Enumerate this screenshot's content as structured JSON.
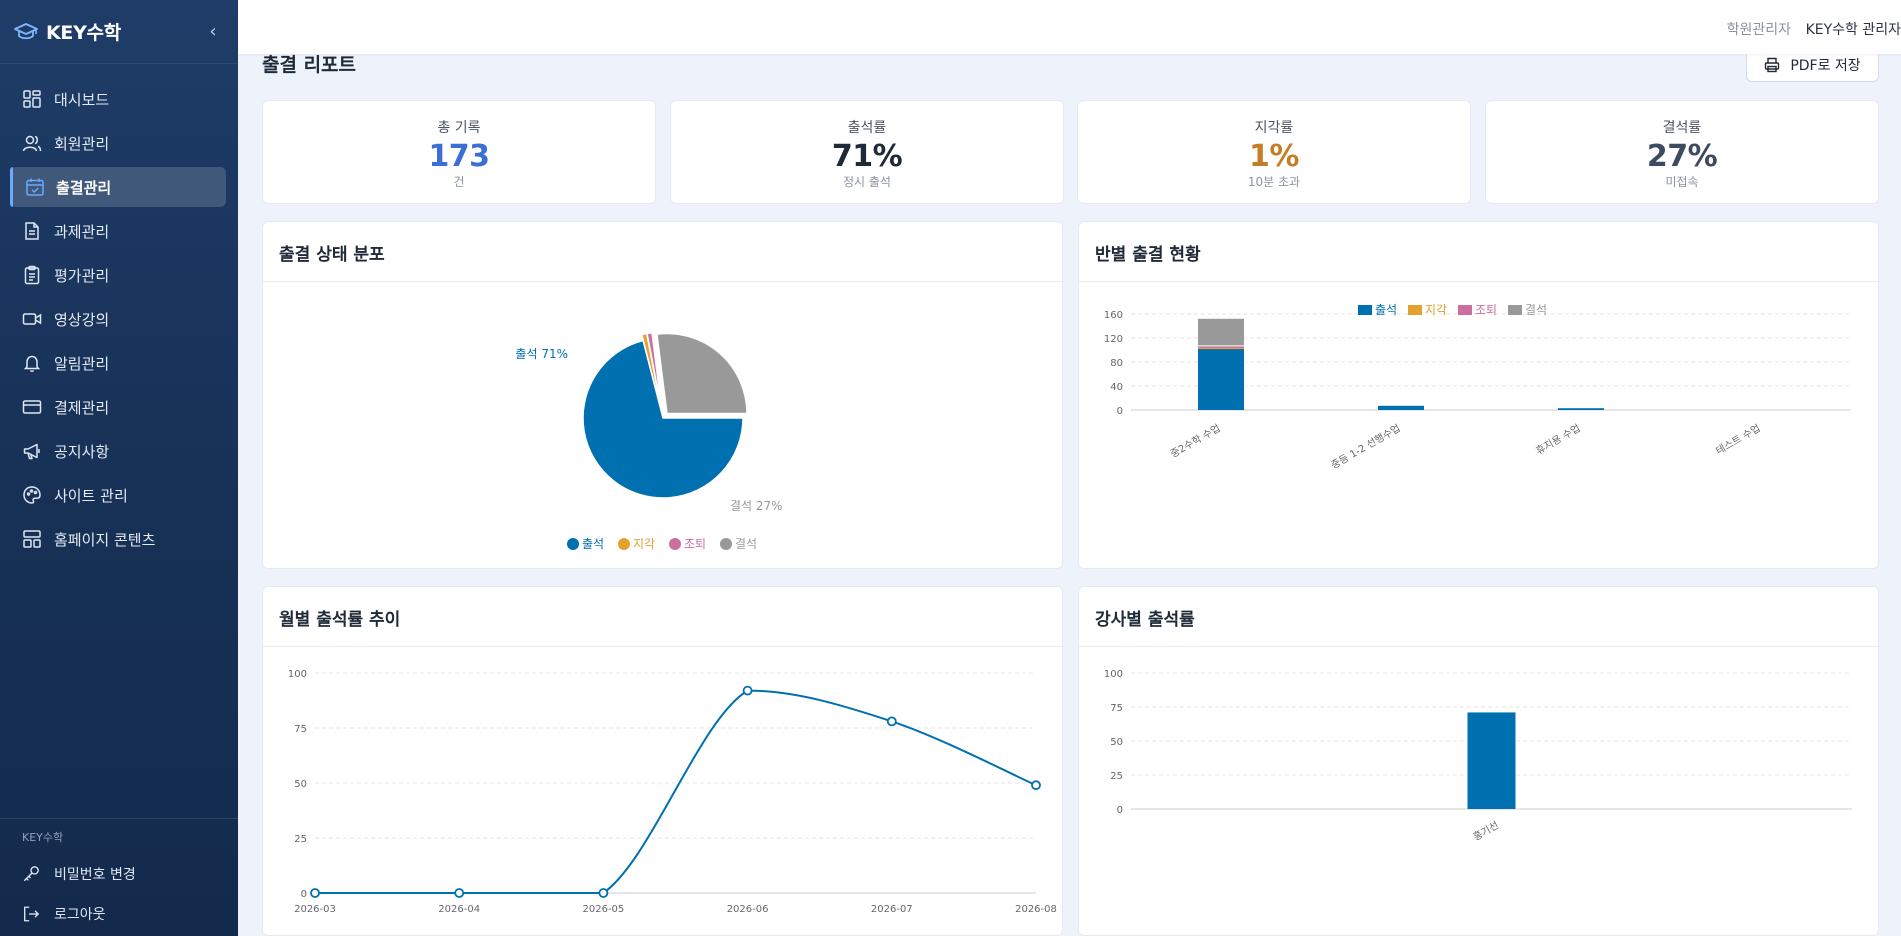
{
  "sidebar": {
    "brand": "KEY수학",
    "collapse_icon": "chevron-left-icon",
    "items": [
      {
        "label": "대시보드",
        "icon": "dashboard-icon",
        "active": false
      },
      {
        "label": "회원관리",
        "icon": "users-icon",
        "active": false
      },
      {
        "label": "출결관리",
        "icon": "calendar-check-icon",
        "active": true
      },
      {
        "label": "과제관리",
        "icon": "file-text-icon",
        "active": false
      },
      {
        "label": "평가관리",
        "icon": "clipboard-icon",
        "active": false
      },
      {
        "label": "영상강의",
        "icon": "video-icon",
        "active": false
      },
      {
        "label": "알림관리",
        "icon": "bell-icon",
        "active": false
      },
      {
        "label": "결제관리",
        "icon": "credit-card-icon",
        "active": false
      },
      {
        "label": "공지사항",
        "icon": "megaphone-icon",
        "active": false
      },
      {
        "label": "사이트 관리",
        "icon": "palette-icon",
        "active": false
      },
      {
        "label": "홈페이지 콘텐츠",
        "icon": "layout-icon",
        "active": false
      }
    ],
    "footer_brand": "KEY수학",
    "change_password": "비밀번호 변경",
    "logout": "로그아웃"
  },
  "topbar": {
    "role": "학원관리자",
    "user": "KEY수학 관리자"
  },
  "page": {
    "title": "출결 리포트",
    "pdf_button": "PDF로 저장"
  },
  "stats": [
    {
      "label": "총 기록",
      "value": "173",
      "sub": "건",
      "color": "#3b6fd6"
    },
    {
      "label": "출석률",
      "value": "71%",
      "sub": "정시 출석",
      "color": "#1f2937"
    },
    {
      "label": "지각률",
      "value": "1%",
      "sub": "10분 초과",
      "color": "#c57d26"
    },
    {
      "label": "결석률",
      "value": "27%",
      "sub": "미접속",
      "color": "#3d4a60"
    }
  ],
  "panels": {
    "status_distribution": "출결 상태 분포",
    "class_attendance": "반별 출결 현황",
    "monthly_trend": "월별 출석률 추이",
    "teacher_attendance": "강사별 출석률"
  },
  "colors": {
    "attend": "#0070b0",
    "late": "#e3a12d",
    "early": "#cc6fa0",
    "absent": "#999999"
  },
  "chart_data": [
    {
      "type": "pie",
      "title": "출결 상태 분포",
      "categories": [
        "출석",
        "지각",
        "조퇴",
        "결석"
      ],
      "values": [
        71,
        1,
        1,
        27
      ],
      "slice_labels": [
        "출석 71%",
        "",
        "",
        "결석 27%"
      ],
      "legend": "bottom"
    },
    {
      "type": "bar",
      "stacked": true,
      "title": "반별 출결 현황",
      "categories": [
        "중2수학 수업",
        "중등 1-2 선행수업",
        "휴지용 수업",
        "테스트 수업"
      ],
      "series": [
        {
          "name": "출석",
          "values": [
            103,
            7,
            3,
            0
          ]
        },
        {
          "name": "지각",
          "values": [
            1,
            0,
            0,
            0
          ]
        },
        {
          "name": "조퇴",
          "values": [
            2,
            0,
            0,
            0
          ]
        },
        {
          "name": "결석",
          "values": [
            46,
            0,
            0,
            0
          ]
        }
      ],
      "yticks": [
        0,
        40,
        80,
        120,
        160
      ],
      "ylim": [
        0,
        160
      ],
      "legend": "top",
      "grid": true
    },
    {
      "type": "line",
      "title": "월별 출석률 추이",
      "x": [
        "2026-03",
        "2026-04",
        "2026-05",
        "2026-06",
        "2026-07",
        "2026-08"
      ],
      "values": [
        0,
        0,
        0,
        92,
        78,
        49
      ],
      "yticks": [
        0,
        25,
        50,
        75,
        100
      ],
      "ylim": [
        0,
        100
      ],
      "grid": true
    },
    {
      "type": "bar",
      "title": "강사별 출석률",
      "categories": [
        "홍기선"
      ],
      "values": [
        71
      ],
      "yticks": [
        0,
        25,
        50,
        75,
        100
      ],
      "ylim": [
        0,
        100
      ],
      "grid": true
    }
  ]
}
